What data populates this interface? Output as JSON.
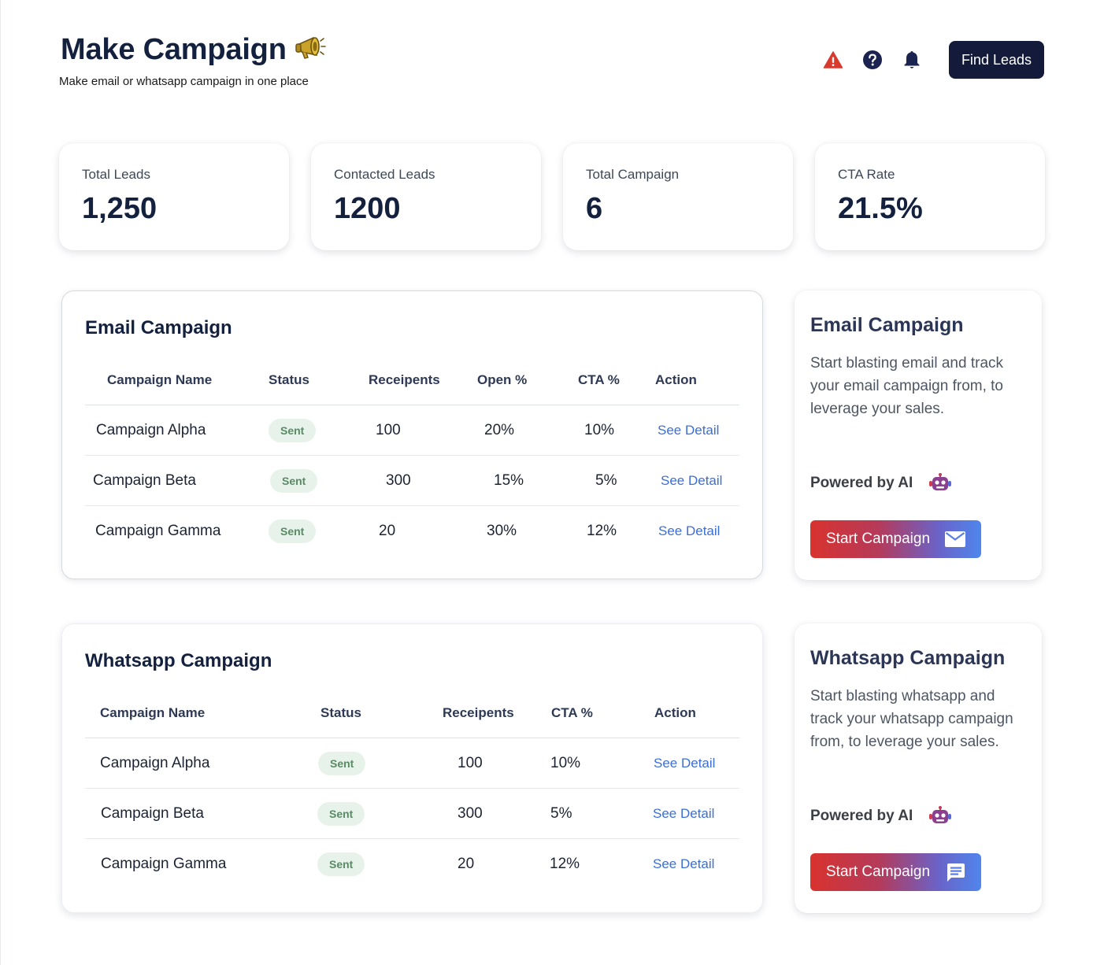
{
  "header": {
    "title": "Make Campaign",
    "subtitle": "Make email or whatsapp campaign in one place",
    "find_leads_label": "Find Leads"
  },
  "stats": [
    {
      "label": "Total Leads",
      "value": "1,250"
    },
    {
      "label": "Contacted Leads",
      "value": "1200"
    },
    {
      "label": "Total Campaign",
      "value": "6"
    },
    {
      "label": "CTA Rate",
      "value": "21.5%"
    }
  ],
  "email_table": {
    "title": "Email Campaign",
    "columns": [
      "Campaign Name",
      "Status",
      "Receipents",
      "Open %",
      "CTA %",
      "Action"
    ],
    "rows": [
      {
        "name": "Campaign Alpha",
        "status": "Sent",
        "recipients": "100",
        "open": "20%",
        "cta": "10%",
        "action": "See Detail"
      },
      {
        "name": "Campaign Beta",
        "status": "Sent",
        "recipients": "300",
        "open": "15%",
        "cta": "5%",
        "action": "See Detail"
      },
      {
        "name": "Campaign Gamma",
        "status": "Sent",
        "recipients": "20",
        "open": "30%",
        "cta": "12%",
        "action": "See Detail"
      }
    ]
  },
  "whatsapp_table": {
    "title": "Whatsapp Campaign",
    "columns": [
      "Campaign Name",
      "Status",
      "Receipents",
      "CTA %",
      "Action"
    ],
    "rows": [
      {
        "name": "Campaign Alpha",
        "status": "Sent",
        "recipients": "100",
        "cta": "10%",
        "action": "See Detail"
      },
      {
        "name": "Campaign Beta",
        "status": "Sent",
        "recipients": "300",
        "cta": "5%",
        "action": "See Detail"
      },
      {
        "name": "Campaign Gamma",
        "status": "Sent",
        "recipients": "20",
        "cta": "12%",
        "action": "See Detail"
      }
    ]
  },
  "email_promo": {
    "title": "Email Campaign",
    "description": "Start blasting email and track your email campaign from, to leverage your sales.",
    "powered_label": "Powered by AI",
    "button_label": "Start Campaign"
  },
  "whatsapp_promo": {
    "title": "Whatsapp Campaign",
    "description": "Start blasting whatsapp and track your whatsapp campaign from, to leverage your sales.",
    "powered_label": "Powered by AI",
    "button_label": "Start Campaign"
  },
  "colors": {
    "navy": "#141b3a",
    "link": "#3a6fd8",
    "badge_bg": "#e7f3ea",
    "badge_text": "#5a8a65",
    "warning": "#d83a2e"
  },
  "icons": [
    "megaphone-icon",
    "warning-icon",
    "help-icon",
    "bell-icon",
    "robot-icon",
    "mail-icon",
    "chat-icon"
  ]
}
